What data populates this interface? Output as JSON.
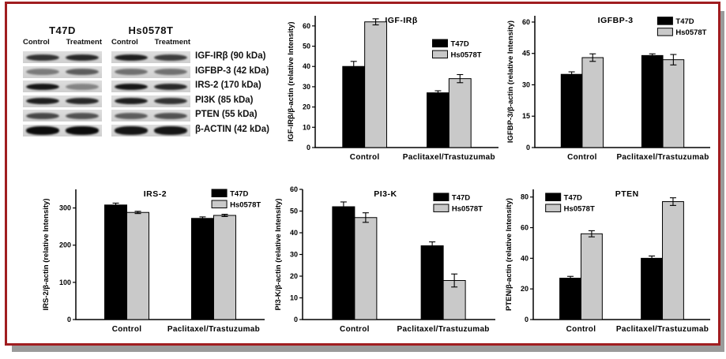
{
  "panel": {
    "border_color": "#A01D20",
    "shadow_color": "#9A9A9A",
    "background": "#FFFFFF",
    "bar_black": "#000000",
    "bar_gray": "#C9C9C9"
  },
  "blots": {
    "groups": [
      {
        "name": "T47D",
        "lane_labels": [
          "Control",
          "Treatment"
        ],
        "rows": [
          [
            0.8,
            0.85
          ],
          [
            0.45,
            0.6
          ],
          [
            0.95,
            0.4
          ],
          [
            0.9,
            0.85
          ],
          [
            0.7,
            0.65
          ],
          [
            1,
            1
          ]
        ]
      },
      {
        "name": "Hs0578T",
        "lane_labels": [
          "Control",
          "Treatment"
        ],
        "rows": [
          [
            0.9,
            0.75
          ],
          [
            0.5,
            0.5
          ],
          [
            0.95,
            0.85
          ],
          [
            0.9,
            0.8
          ],
          [
            0.6,
            0.65
          ],
          [
            0.95,
            0.95
          ]
        ]
      }
    ],
    "row_labels": [
      "IGF-IRβ (90 kDa)",
      "IGFBP-3 (42 kDa)",
      "IRS-2 (170 kDa)",
      "PI3K (85 kDa)",
      "PTEN (55 kDa)",
      "β-ACTIN (42 kDa)"
    ]
  },
  "chart_data": [
    {
      "type": "bar",
      "title": "IGF-IRβ",
      "ylabel": "IGF-IRβ/β-actin (relative Intensity)",
      "categories": [
        "Control",
        "Paclitaxel/Trastuzumab"
      ],
      "series": [
        {
          "name": "T47D",
          "color": "#000000",
          "values": [
            40,
            27
          ],
          "errors": [
            2.5,
            1
          ]
        },
        {
          "name": "Hs0578T",
          "color": "#C9C9C9",
          "values": [
            62,
            34
          ],
          "errors": [
            1.5,
            2
          ]
        }
      ],
      "ylim": [
        0,
        65
      ],
      "yticks": [
        0,
        10,
        20,
        30,
        40,
        50,
        60
      ],
      "grid": false,
      "legend": {
        "x": 0.64,
        "y": 0.18
      },
      "title_x": 0.47
    },
    {
      "type": "bar",
      "title": "IGFBP-3",
      "ylabel": "IGFBP-3/β-actin (relative Intensity)",
      "categories": [
        "Control",
        "Paclitaxel/Trastuzumab"
      ],
      "series": [
        {
          "name": "T47D",
          "color": "#000000",
          "values": [
            35,
            44
          ],
          "errors": [
            1.2,
            0.8
          ]
        },
        {
          "name": "Hs0578T",
          "color": "#C9C9C9",
          "values": [
            43,
            42
          ],
          "errors": [
            1.8,
            2.5
          ]
        }
      ],
      "ylim": [
        0,
        63
      ],
      "yticks": [
        0,
        15,
        30,
        45,
        60
      ],
      "grid": false,
      "legend": {
        "x": 0.7,
        "y": 0.01
      },
      "title_x": 0.46
    },
    {
      "type": "bar",
      "title": "IRS-2",
      "ylabel": "IRS-2/β-actin (relative Intensity)",
      "categories": [
        "Control",
        "Paclitaxel/Trastuzumab"
      ],
      "series": [
        {
          "name": "T47D",
          "color": "#000000",
          "values": [
            308,
            272
          ],
          "errors": [
            5,
            4
          ]
        },
        {
          "name": "Hs0578T",
          "color": "#C9C9C9",
          "values": [
            288,
            280
          ],
          "errors": [
            3,
            3
          ]
        }
      ],
      "ylim": [
        0,
        350
      ],
      "yticks": [
        0,
        100,
        200,
        300
      ],
      "grid": false,
      "legend": {
        "x": 0.72,
        "y": 0.0
      },
      "title_x": 0.42
    },
    {
      "type": "bar",
      "title": "PI3-K",
      "ylabel": "PI3-K/β-actin (relative Intensity)",
      "categories": [
        "Control",
        "Paclitaxel/Trastuzumab"
      ],
      "series": [
        {
          "name": "T47D",
          "color": "#000000",
          "values": [
            52,
            34
          ],
          "errors": [
            2.2,
            1.8
          ]
        },
        {
          "name": "Hs0578T",
          "color": "#C9C9C9",
          "values": [
            47,
            18
          ],
          "errors": [
            2.2,
            3
          ]
        }
      ],
      "ylim": [
        0,
        60
      ],
      "yticks": [
        0,
        10,
        20,
        30,
        40,
        50,
        60
      ],
      "grid": false,
      "legend": {
        "x": 0.68,
        "y": 0.03
      },
      "title_x": 0.43
    },
    {
      "type": "bar",
      "title": "PTEN",
      "ylabel": "PTEN/β-actin (relative Intensity)",
      "categories": [
        "Control",
        "Paclitaxel/Trastuzumab"
      ],
      "series": [
        {
          "name": "T47D",
          "color": "#000000",
          "values": [
            27,
            40
          ],
          "errors": [
            1.2,
            1.5
          ]
        },
        {
          "name": "Hs0578T",
          "color": "#C9C9C9",
          "values": [
            56,
            77
          ],
          "errors": [
            2,
            2.5
          ]
        }
      ],
      "ylim": [
        0,
        85
      ],
      "yticks": [
        0,
        20,
        40,
        60,
        80
      ],
      "grid": false,
      "legend": {
        "x": 0.07,
        "y": 0.03
      },
      "title_x": 0.53
    }
  ]
}
